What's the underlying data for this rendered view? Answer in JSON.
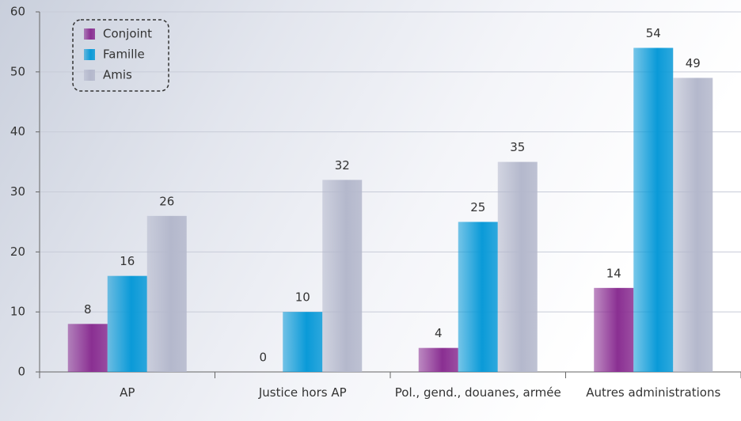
{
  "chart_data": {
    "type": "bar",
    "categories": [
      "AP",
      "Justice hors AP",
      "Pol., gend., douanes, armée",
      "Autres administrations"
    ],
    "series": [
      {
        "name": "Conjoint",
        "color": "#8a2f92",
        "values": [
          8,
          0,
          4,
          14
        ]
      },
      {
        "name": "Famille",
        "color": "#0a9ad8",
        "values": [
          16,
          10,
          25,
          54
        ]
      },
      {
        "name": "Amis",
        "color": "#b4b8cc",
        "values": [
          26,
          32,
          35,
          49
        ]
      }
    ],
    "ylim": [
      0,
      60
    ],
    "yticks": [
      0,
      10,
      20,
      30,
      40,
      50,
      60
    ],
    "grid": true,
    "legend": "top-left"
  }
}
